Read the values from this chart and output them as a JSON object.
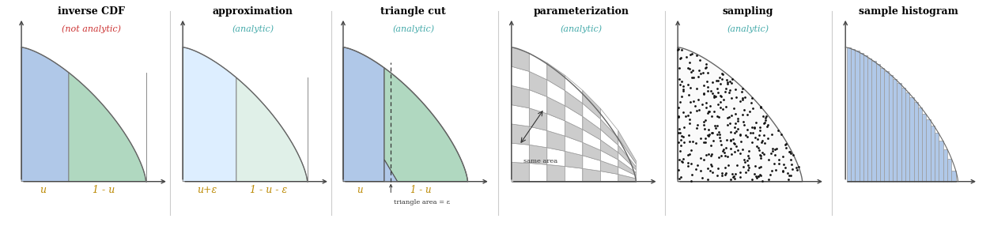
{
  "panels": [
    {
      "title": "inverse CDF",
      "subtitle": "(not analytic)",
      "subtitle_color": "#cc3333",
      "title_color": "#000000",
      "label_left": "u",
      "label_right": "1 - u",
      "label_color": "#bb8800",
      "split": 0.38,
      "color_left": "#b0c8e8",
      "color_right": "#b0d8c0",
      "curve_type": "cdf",
      "dashed_line": false,
      "triangle": false
    },
    {
      "title": "approximation",
      "subtitle": "(analytic)",
      "subtitle_color": "#44aaaa",
      "title_color": "#000000",
      "label_left": "u+ε",
      "label_right": "1 - u - ε",
      "label_color": "#bb8800",
      "split": 0.43,
      "color_left": "#ddeeff",
      "color_right": "#e0f0e8",
      "curve_type": "cdf",
      "dashed_line": false,
      "triangle": false
    },
    {
      "title": "triangle cut",
      "subtitle": "(analytic)",
      "subtitle_color": "#44aaaa",
      "title_color": "#000000",
      "label_left": "u",
      "label_right": "1 - u",
      "label_color": "#bb8800",
      "split": 0.33,
      "color_left": "#b0c8e8",
      "color_right": "#b0d8c0",
      "curve_type": "cdf",
      "dashed_line": true,
      "triangle": true,
      "bottom_label": "triangle area = ε"
    },
    {
      "title": "parameterization",
      "subtitle": "(analytic)",
      "subtitle_color": "#44aaaa",
      "title_color": "#000000",
      "label_left": "",
      "label_right": "",
      "label_color": "#bb8800",
      "split": 0.5,
      "color_left": "#cccccc",
      "color_right": "#ffffff",
      "curve_type": "cdf",
      "dashed_line": false,
      "triangle": false,
      "checkerboard": true,
      "bottom_label": "same area"
    },
    {
      "title": "sampling",
      "subtitle": "(analytic)",
      "subtitle_color": "#44aaaa",
      "title_color": "#000000",
      "label_left": "",
      "label_right": "",
      "label_color": "#bb8800",
      "split": 0.5,
      "color_left": "#ffffff",
      "color_right": "#ffffff",
      "curve_type": "cdf",
      "dashed_line": false,
      "triangle": false,
      "dots": true
    },
    {
      "title": "sample histogram",
      "subtitle": "",
      "subtitle_color": "#44aaaa",
      "title_color": "#000000",
      "label_left": "",
      "label_right": "",
      "label_color": "#bb8800",
      "split": 0.5,
      "color_left": "#b0c8e8",
      "color_right": "#b0c8e8",
      "curve_type": "histogram",
      "dashed_line": false,
      "triangle": false
    }
  ],
  "bg_color": "#ffffff",
  "axis_color": "#444444",
  "curve_color": "#666666",
  "n_hist_bars": 26
}
